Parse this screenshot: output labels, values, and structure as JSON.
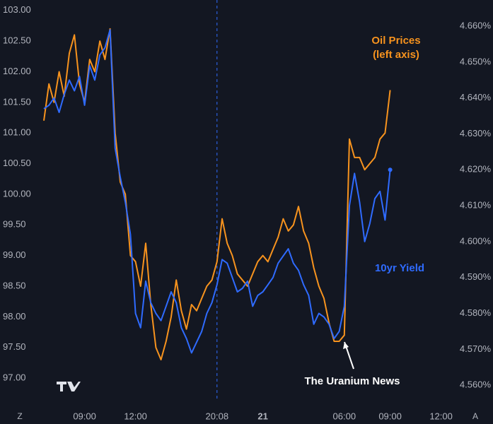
{
  "chart_data": {
    "type": "line",
    "categories": [
      null,
      null,
      null,
      null,
      null,
      null,
      null,
      null,
      "09:00",
      null,
      null,
      null,
      null,
      null,
      null,
      null,
      null,
      null,
      "12:00",
      null,
      null,
      null,
      null,
      null,
      null,
      null,
      null,
      null,
      null,
      null,
      null,
      null,
      null,
      null,
      "20:08",
      null,
      null,
      null,
      null,
      null,
      null,
      null,
      null,
      "21",
      null,
      null,
      null,
      null,
      null,
      null,
      null,
      null,
      null,
      null,
      null,
      null,
      null,
      null,
      null,
      "06:00",
      null,
      null,
      null,
      null,
      null,
      null,
      null,
      null,
      "09:00",
      null,
      null,
      null,
      null,
      null,
      null,
      null,
      null,
      null,
      "12:00"
    ],
    "series": [
      {
        "name": "Oil Prices",
        "color": "#f7931e",
        "axis": "y",
        "values": [
          101.2,
          101.8,
          101.5,
          102.0,
          101.6,
          102.3,
          102.6,
          101.8,
          101.5,
          102.2,
          102.0,
          102.5,
          102.2,
          102.7,
          101.0,
          100.2,
          100.0,
          99.0,
          98.9,
          98.5,
          99.2,
          98.2,
          97.5,
          97.3,
          97.6,
          98.0,
          98.6,
          98.1,
          97.8,
          98.2,
          98.1,
          98.3,
          98.5,
          98.6,
          98.9,
          99.6,
          99.2,
          99.0,
          98.7,
          98.6,
          98.5,
          98.7,
          98.9,
          99.0,
          98.9,
          99.1,
          99.3,
          99.6,
          99.4,
          99.5,
          99.8,
          99.4,
          99.2,
          98.8,
          98.5,
          98.3,
          97.9,
          97.6,
          97.6,
          97.7,
          100.9,
          100.6,
          100.6,
          100.4,
          100.5,
          100.6,
          100.9,
          101.0,
          101.7,
          null,
          null,
          null,
          null,
          null,
          null,
          null,
          null,
          null,
          null
        ]
      },
      {
        "name": "10yr Yield",
        "color": "#2f6bff",
        "axis": "y2",
        "values": [
          4.637,
          4.638,
          4.64,
          4.636,
          4.641,
          4.645,
          4.642,
          4.646,
          4.638,
          4.649,
          4.645,
          4.652,
          4.654,
          4.659,
          4.626,
          4.618,
          4.611,
          4.602,
          4.58,
          4.576,
          4.589,
          4.583,
          4.58,
          4.578,
          4.582,
          4.586,
          4.583,
          4.576,
          4.573,
          4.569,
          4.572,
          4.575,
          4.58,
          4.583,
          4.588,
          4.595,
          4.594,
          4.59,
          4.586,
          4.587,
          4.589,
          4.582,
          4.585,
          4.586,
          4.588,
          4.59,
          4.594,
          4.596,
          4.598,
          4.594,
          4.592,
          4.588,
          4.585,
          4.577,
          4.58,
          4.579,
          4.577,
          4.573,
          4.575,
          4.582,
          4.61,
          4.619,
          4.611,
          4.6,
          4.605,
          4.612,
          4.614,
          4.606,
          4.62,
          null,
          null,
          null,
          null,
          null,
          null,
          null,
          null,
          null,
          null
        ]
      }
    ],
    "ylim": [
      96.62,
      103.17
    ],
    "yticks": [
      {
        "value": 97,
        "label": "97.00"
      },
      {
        "value": 97.5,
        "label": "97.50"
      },
      {
        "value": 98,
        "label": "98.00"
      },
      {
        "value": 98.5,
        "label": "98.50"
      },
      {
        "value": 99,
        "label": "99.00"
      },
      {
        "value": 99.5,
        "label": "99.50"
      },
      {
        "value": 100,
        "label": "100.00"
      },
      {
        "value": 100.5,
        "label": "100.50"
      },
      {
        "value": 101,
        "label": "101.00"
      },
      {
        "value": 101.5,
        "label": "101.50"
      },
      {
        "value": 102,
        "label": "102.00"
      },
      {
        "value": 102.5,
        "label": "102.50"
      },
      {
        "value": 103,
        "label": "103.00"
      }
    ],
    "y2lim": [
      4.5555,
      4.6673
    ],
    "y2ticks": [
      {
        "value": 4.56,
        "label": "4.560%"
      },
      {
        "value": 4.57,
        "label": "4.570%"
      },
      {
        "value": 4.58,
        "label": "4.580%"
      },
      {
        "value": 4.59,
        "label": "4.590%"
      },
      {
        "value": 4.6,
        "label": "4.600%"
      },
      {
        "value": 4.61,
        "label": "4.610%"
      },
      {
        "value": 4.62,
        "label": "4.620%"
      },
      {
        "value": 4.63,
        "label": "4.630%"
      },
      {
        "value": 4.64,
        "label": "4.640%"
      },
      {
        "value": 4.65,
        "label": "4.650%"
      },
      {
        "value": 4.66,
        "label": "4.660%"
      }
    ],
    "grid": false,
    "annotations": [
      "(left axis)",
      "The Uranium News"
    ]
  },
  "ui": {
    "left_button": "Z",
    "right_button": "A"
  }
}
